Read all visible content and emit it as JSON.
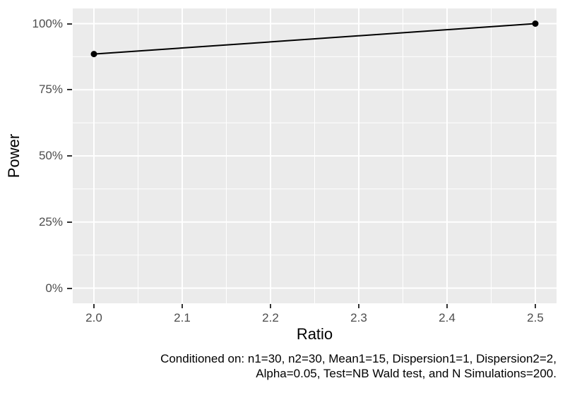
{
  "chart_data": {
    "type": "line",
    "title": "",
    "xlabel": "Ratio",
    "ylabel": "Power",
    "xlim": [
      2.0,
      2.5
    ],
    "ylim": [
      0,
      100
    ],
    "y_unit": "percent",
    "grid": true,
    "legend": "none",
    "x_ticks": [
      {
        "label": "2.0",
        "value": 2.0
      },
      {
        "label": "2.1",
        "value": 2.1
      },
      {
        "label": "2.2",
        "value": 2.2
      },
      {
        "label": "2.3",
        "value": 2.3
      },
      {
        "label": "2.4",
        "value": 2.4
      },
      {
        "label": "2.5",
        "value": 2.5
      }
    ],
    "y_ticks": [
      {
        "label": "0%",
        "value": 0
      },
      {
        "label": "25%",
        "value": 25
      },
      {
        "label": "50%",
        "value": 50
      },
      {
        "label": "75%",
        "value": 75
      },
      {
        "label": "100%",
        "value": 100
      }
    ],
    "series": [
      {
        "name": "Power",
        "points": [
          {
            "x": 2.0,
            "y": 88.5
          },
          {
            "x": 2.5,
            "y": 100
          }
        ]
      }
    ],
    "caption": [
      "Conditioned on: n1=30, n2=30, Mean1=15, Dispersion1=1, Dispersion2=2,",
      "Alpha=0.05, Test=NB Wald test, and N Simulations=200."
    ],
    "colors": {
      "panel_bg": "#EBEBEB",
      "gridline": "#FFFFFF",
      "line": "#000000",
      "point": "#000000",
      "tick_text": "#4D4D4D",
      "tick_mark": "#333333",
      "axis_title": "#000000",
      "caption_text": "#000000"
    }
  }
}
